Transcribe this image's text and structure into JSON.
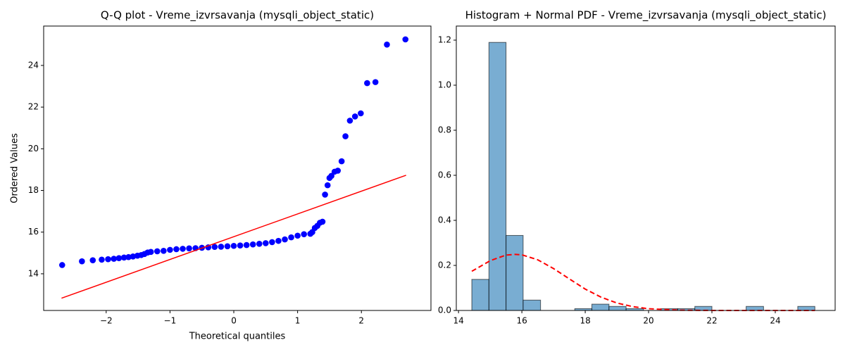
{
  "chart_data": [
    {
      "type": "scatter",
      "title": "Q-Q plot - Vreme_izvrsavanja (mysqli_object_static)",
      "x_label": "Theoretical quantiles",
      "y_label": "Ordered Values",
      "xlim": [
        -2.98,
        3.09
      ],
      "ylim": [
        12.24,
        25.89
      ],
      "xticks": [
        {
          "value": -2,
          "label": "−2"
        },
        {
          "value": -1,
          "label": "−1"
        },
        0,
        1,
        2
      ],
      "yticks": [
        14,
        16,
        18,
        20,
        22,
        24
      ],
      "points": {
        "color": "#0000ff",
        "x": [
          -2.69,
          -2.38,
          -2.21,
          -2.07,
          -1.97,
          -1.88,
          -1.8,
          -1.72,
          -1.65,
          -1.58,
          -1.51,
          -1.45,
          -1.4,
          -1.35,
          -1.3,
          -1.2,
          -1.1,
          -1.0,
          -0.9,
          -0.8,
          -0.7,
          -0.6,
          -0.5,
          -0.4,
          -0.3,
          -0.2,
          -0.1,
          0,
          0.1,
          0.2,
          0.3,
          0.4,
          0.5,
          0.6,
          0.7,
          0.8,
          0.9,
          1.0,
          1.1,
          1.2,
          1.23,
          1.27,
          1.31,
          1.35,
          1.39,
          1.43,
          1.47,
          1.5,
          1.53,
          1.58,
          1.63,
          1.69,
          1.75,
          1.82,
          1.9,
          1.99,
          2.09,
          2.22,
          2.4,
          2.69
        ],
        "values": [
          14.42,
          14.6,
          14.65,
          14.68,
          14.7,
          14.72,
          14.75,
          14.78,
          14.8,
          14.83,
          14.87,
          14.9,
          14.95,
          15.02,
          15.05,
          15.08,
          15.1,
          15.15,
          15.18,
          15.2,
          15.22,
          15.23,
          15.25,
          15.27,
          15.29,
          15.3,
          15.32,
          15.34,
          15.36,
          15.38,
          15.41,
          15.44,
          15.47,
          15.52,
          15.58,
          15.65,
          15.75,
          15.83,
          15.9,
          15.92,
          16.0,
          16.2,
          16.3,
          16.45,
          16.5,
          17.8,
          18.25,
          18.6,
          18.7,
          18.9,
          18.95,
          19.4,
          20.6,
          21.35,
          21.55,
          21.7,
          23.15,
          23.2,
          25.0,
          25.25
        ]
      },
      "fit_line": {
        "color": "#ff0000",
        "x": [
          -2.7,
          2.7
        ],
        "values": [
          12.83,
          18.73
        ]
      }
    },
    {
      "type": "histogram",
      "title": "Histogram + Normal PDF - Vreme_izvrsavanja (mysqli_object_static)",
      "xlim": [
        13.93,
        25.89
      ],
      "ylim": [
        0,
        1.2625
      ],
      "xticks": [
        14,
        16,
        18,
        20,
        22,
        24
      ],
      "yticks": [
        {
          "value": 0,
          "label": "0.0"
        },
        0.2,
        0.4,
        0.6,
        0.8,
        {
          "value": 1,
          "label": "1.0"
        },
        1.2
      ],
      "color": "#1f77b4",
      "bins": [
        14.42,
        14.96,
        15.5,
        16.04,
        16.59,
        17.13,
        17.67,
        18.21,
        18.75,
        19.29,
        19.84,
        20.38,
        20.92,
        21.46,
        22.0,
        22.54,
        23.08,
        23.63,
        24.17,
        24.71,
        25.25
      ],
      "values": [
        0.138,
        1.19,
        0.333,
        0.046,
        0,
        0,
        0.008,
        0.028,
        0.018,
        0.008,
        0,
        0.008,
        0.008,
        0.018,
        0,
        0,
        0.018,
        0,
        0,
        0.018
      ],
      "pdf": {
        "color": "#ff0000",
        "x": [
          14.42,
          15,
          15.5,
          15.8,
          16,
          16.5,
          17,
          17.5,
          18,
          18.5,
          19,
          19.5,
          20,
          21,
          22,
          23,
          24,
          25.25
        ],
        "values": [
          0.174,
          0.221,
          0.246,
          0.249,
          0.247,
          0.225,
          0.186,
          0.14,
          0.095,
          0.059,
          0.033,
          0.017,
          0.0077,
          0.0012,
          0.0001,
          0,
          0,
          0
        ]
      }
    }
  ]
}
